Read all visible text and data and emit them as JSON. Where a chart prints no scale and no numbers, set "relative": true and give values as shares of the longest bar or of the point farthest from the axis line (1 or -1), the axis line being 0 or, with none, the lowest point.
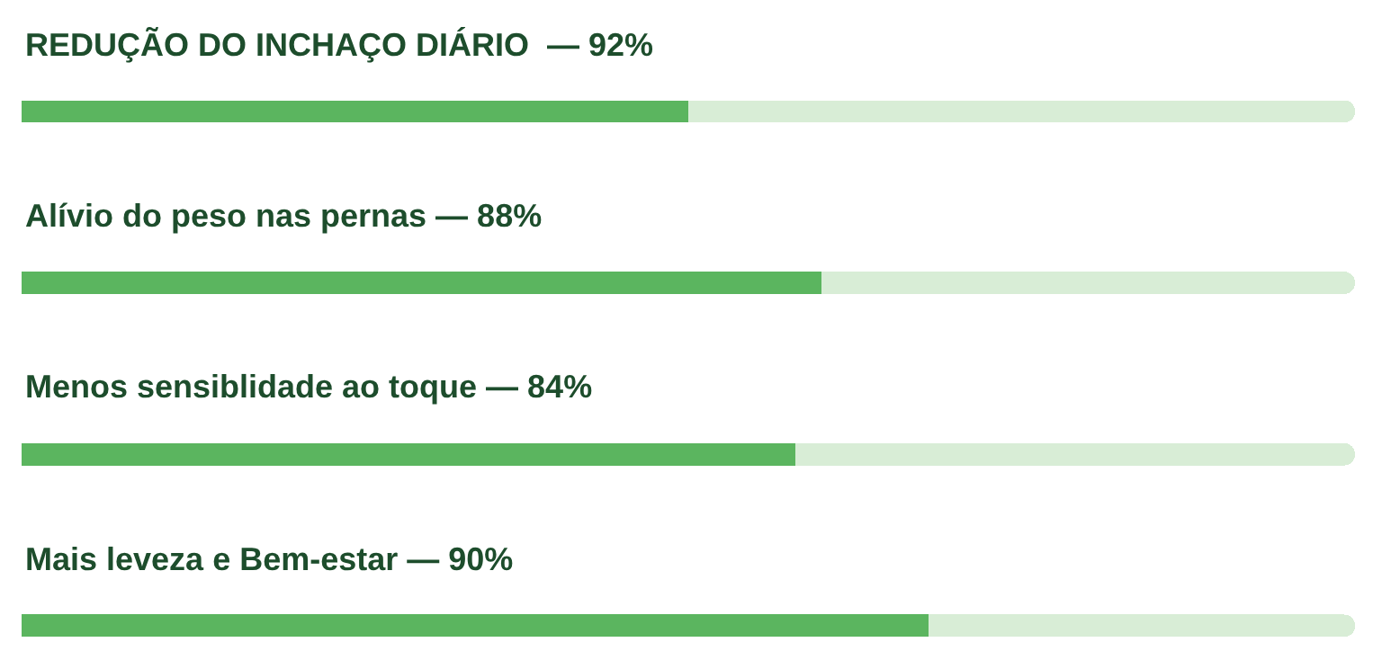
{
  "chart_data": {
    "type": "bar",
    "orientation": "horizontal",
    "relative": true,
    "stacked": true,
    "categories": [
      "REDUÇÃO DO INCHAÇO DIÁRIO  — 92%",
      "Alívio do peso nas pernas — 88%",
      "Menos sensiblidade ao toque — 84%",
      "Mais leveza e Bem-estar — 90%"
    ],
    "series": [
      {
        "color": "#5bb55f",
        "values": [
          0.5,
          0.6,
          0.58,
          0.68
        ]
      },
      {
        "color": "#d8edd6",
        "values": [
          0.5,
          0.4,
          0.42,
          0.32
        ]
      }
    ]
  }
}
